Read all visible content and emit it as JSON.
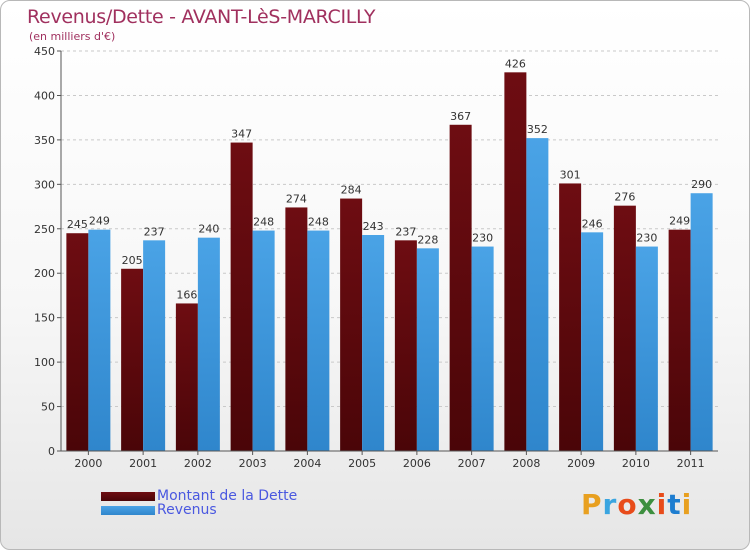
{
  "header": {
    "title": "Revenus/Dette - AVANT-LèS-MARCILLY",
    "subtitle": "(en milliers d'€)"
  },
  "logo": {
    "text": "Proxiti",
    "letter_colors": [
      "#e8a020",
      "#3aa5e0",
      "#e84b1a",
      "#3d8f3f",
      "#e84b1a",
      "#1d7dd0",
      "#e8a020"
    ]
  },
  "colors": {
    "dette": "#6e0d12",
    "revenus": "#4aa3e6",
    "axis": "#555555",
    "grid": "#c9c9c9",
    "label": "#333333"
  },
  "chart_data": {
    "type": "bar",
    "categories": [
      "2000",
      "2001",
      "2002",
      "2003",
      "2004",
      "2005",
      "2006",
      "2007",
      "2008",
      "2009",
      "2010",
      "2011"
    ],
    "series": [
      {
        "name": "Montant de la Dette",
        "values": [
          245,
          205,
          166,
          347,
          274,
          284,
          237,
          367,
          426,
          301,
          276,
          249
        ]
      },
      {
        "name": "Revenus",
        "values": [
          249,
          237,
          240,
          248,
          248,
          243,
          228,
          230,
          352,
          246,
          230,
          290
        ]
      }
    ],
    "ylim": [
      0,
      450
    ],
    "yticks": [
      0,
      50,
      100,
      150,
      200,
      250,
      300,
      350,
      400,
      450
    ],
    "grid": true,
    "legend": "bottom-left"
  }
}
